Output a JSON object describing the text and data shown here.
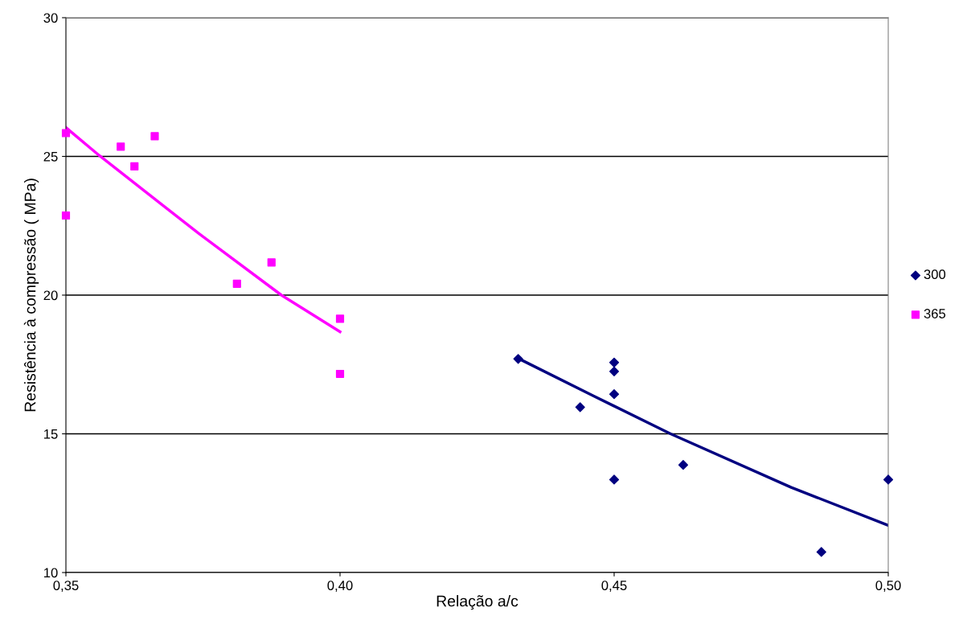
{
  "chart_data": {
    "type": "scatter",
    "xlabel": "Relação a/c",
    "ylabel": "Resistência à compressão ( MPa)",
    "xlim": [
      0.35,
      0.5
    ],
    "ylim": [
      10,
      30
    ],
    "xticks": [
      {
        "value": 0.35,
        "label": "0,35"
      },
      {
        "value": 0.4,
        "label": "0,40"
      },
      {
        "value": 0.45,
        "label": "0,45"
      },
      {
        "value": 0.5,
        "label": "0,50"
      }
    ],
    "yticks": [
      10,
      15,
      20,
      25,
      30
    ],
    "grid": "y",
    "legend": "right",
    "series": [
      {
        "name": "300",
        "color": "#000080",
        "marker": "diamond",
        "x": [
          0.4325,
          0.45,
          0.45,
          0.45,
          0.4438,
          0.45,
          0.4626,
          0.4878,
          0.5
        ],
        "values": [
          17.7,
          17.57,
          17.25,
          16.43,
          15.96,
          13.35,
          13.88,
          10.74,
          13.35
        ]
      },
      {
        "name": "365",
        "color": "#ff00ff",
        "marker": "square",
        "x": [
          0.35,
          0.35,
          0.36,
          0.3625,
          0.3662,
          0.3812,
          0.3875,
          0.4,
          0.4
        ],
        "values": [
          25.84,
          22.87,
          25.35,
          24.64,
          25.73,
          20.41,
          21.18,
          19.15,
          17.16
        ]
      },
      {
        "type": "line",
        "color": "#000080",
        "marker": "none",
        "x": [
          0.433,
          0.4462,
          0.4603,
          0.4823,
          0.5
        ],
        "values": [
          17.67,
          16.37,
          15.0,
          13.07,
          11.7
        ]
      },
      {
        "type": "line",
        "color": "#ff00ff",
        "marker": "none",
        "x": [
          0.35,
          0.3561,
          0.3741,
          0.3893,
          0.4
        ],
        "values": [
          26.04,
          25.03,
          22.24,
          20.0,
          18.68
        ]
      }
    ]
  }
}
